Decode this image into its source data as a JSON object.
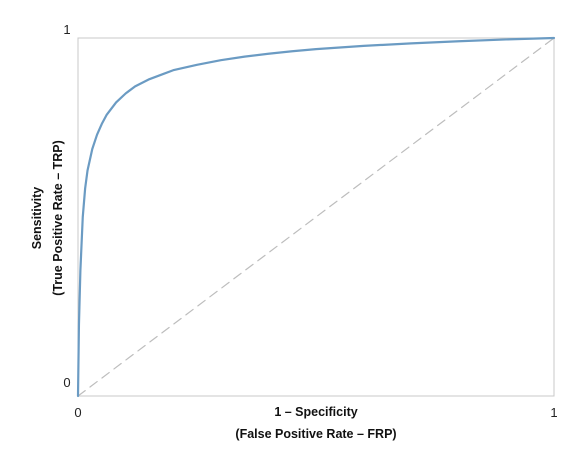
{
  "chart_data": {
    "type": "line",
    "title": "",
    "xlabel_lines": [
      "1 – Specificity",
      "(False Positive Rate – FRP)"
    ],
    "ylabel_lines": [
      "Sensitivity",
      "(True Positive Rate – TRP)"
    ],
    "xlim": [
      0,
      1
    ],
    "ylim": [
      0,
      1
    ],
    "x_ticks": [
      {
        "value": 0,
        "label": "0"
      },
      {
        "value": 1,
        "label": "1"
      }
    ],
    "y_ticks": [
      {
        "value": 0,
        "label": "0"
      },
      {
        "value": 1,
        "label": "1"
      }
    ],
    "grid": false,
    "legend": "none",
    "series": [
      {
        "style": "solid",
        "color": "#6b9bc3",
        "x": [
          0,
          0.002,
          0.005,
          0.01,
          0.015,
          0.02,
          0.03,
          0.04,
          0.05,
          0.06,
          0.08,
          0.1,
          0.12,
          0.15,
          0.18,
          0.2,
          0.25,
          0.3,
          0.35,
          0.4,
          0.45,
          0.5,
          0.6,
          0.7,
          0.8,
          0.9,
          1.0
        ],
        "y": [
          0,
          0.2,
          0.35,
          0.5,
          0.58,
          0.63,
          0.69,
          0.73,
          0.76,
          0.785,
          0.82,
          0.845,
          0.865,
          0.885,
          0.9,
          0.91,
          0.925,
          0.938,
          0.948,
          0.956,
          0.963,
          0.969,
          0.978,
          0.985,
          0.991,
          0.996,
          1.0
        ]
      },
      {
        "style": "dashed",
        "color": "#bdbdbd",
        "x": [
          0,
          1
        ],
        "y": [
          0,
          1
        ]
      }
    ]
  },
  "colors": {
    "plot_border": "#c8c8c8",
    "roc_curve": "#6b9bc3",
    "reference_line": "#bdbdbd"
  }
}
